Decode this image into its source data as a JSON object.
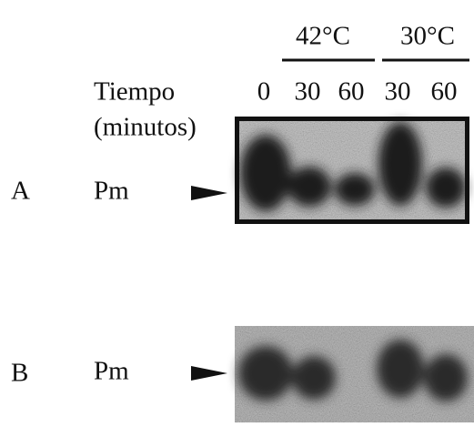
{
  "header": {
    "conditions": [
      "42°C",
      "30°C"
    ],
    "time_label": "Tiempo",
    "time_unit": "(minutos)",
    "times": [
      "0",
      "30",
      "60",
      "30",
      "60"
    ]
  },
  "panels": [
    {
      "label": "A",
      "band": "Pm"
    },
    {
      "label": "B",
      "band": "Pm"
    }
  ]
}
